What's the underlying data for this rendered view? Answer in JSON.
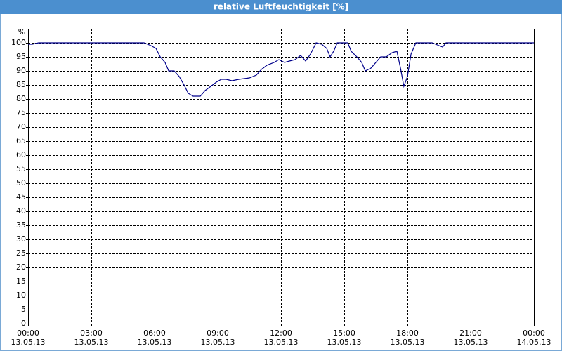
{
  "chart_data": {
    "type": "line",
    "title": "relative Luftfeuchtigkeit [%]",
    "y_label": "%",
    "xlim": [
      0,
      24
    ],
    "ylim": [
      0,
      105
    ],
    "xticks": [
      {
        "value": 0,
        "label": "00:00 13.05.13"
      },
      {
        "value": 3,
        "label": "03:00 13.05.13"
      },
      {
        "value": 6,
        "label": "06:00 13.05.13"
      },
      {
        "value": 9,
        "label": "09:00 13.05.13"
      },
      {
        "value": 12,
        "label": "12:00 13.05.13"
      },
      {
        "value": 15,
        "label": "15:00 13.05.13"
      },
      {
        "value": 18,
        "label": "18:00 13.05.13"
      },
      {
        "value": 21,
        "label": "21:00 13.05.13"
      },
      {
        "value": 24,
        "label": "00:00 14.05.13"
      }
    ],
    "yticks": [
      0,
      5,
      10,
      15,
      20,
      25,
      30,
      35,
      40,
      45,
      50,
      55,
      60,
      65,
      70,
      75,
      80,
      85,
      90,
      95,
      100
    ],
    "grid": true,
    "series": [
      {
        "color": "#00008b",
        "x": [
          0,
          0.2,
          0.5,
          5.5,
          5.83,
          6.07,
          6.27,
          6.5,
          6.67,
          6.93,
          7.17,
          7.4,
          7.6,
          7.83,
          8.17,
          8.4,
          8.67,
          8.93,
          9.17,
          9.4,
          9.67,
          10,
          10.5,
          10.83,
          11.07,
          11.33,
          11.67,
          11.9,
          12.17,
          12.4,
          12.67,
          12.93,
          13.17,
          13.4,
          13.67,
          13.93,
          14.17,
          14.33,
          14.5,
          14.67,
          15,
          15.17,
          15.33,
          15.6,
          15.83,
          16,
          16.27,
          16.5,
          16.73,
          17,
          17.27,
          17.5,
          17.67,
          17.83,
          18,
          18.17,
          18.4,
          19.17,
          19.5,
          19.67,
          19.83,
          24
        ],
        "values": [
          99.5,
          99.5,
          100,
          100,
          99,
          98,
          95,
          93,
          90,
          90,
          88,
          85,
          82,
          81,
          81,
          83,
          84.5,
          86,
          87,
          87,
          86.5,
          87,
          87.5,
          88.5,
          90.5,
          92,
          93,
          94,
          93,
          93.5,
          94,
          95.5,
          93.5,
          96,
          100,
          99.5,
          98,
          95,
          97,
          100,
          100,
          100,
          97,
          95,
          93,
          90,
          91,
          93,
          95,
          95,
          96.5,
          97,
          91,
          84.5,
          88,
          96,
          100,
          100,
          99,
          98.5,
          100,
          100
        ]
      }
    ]
  }
}
